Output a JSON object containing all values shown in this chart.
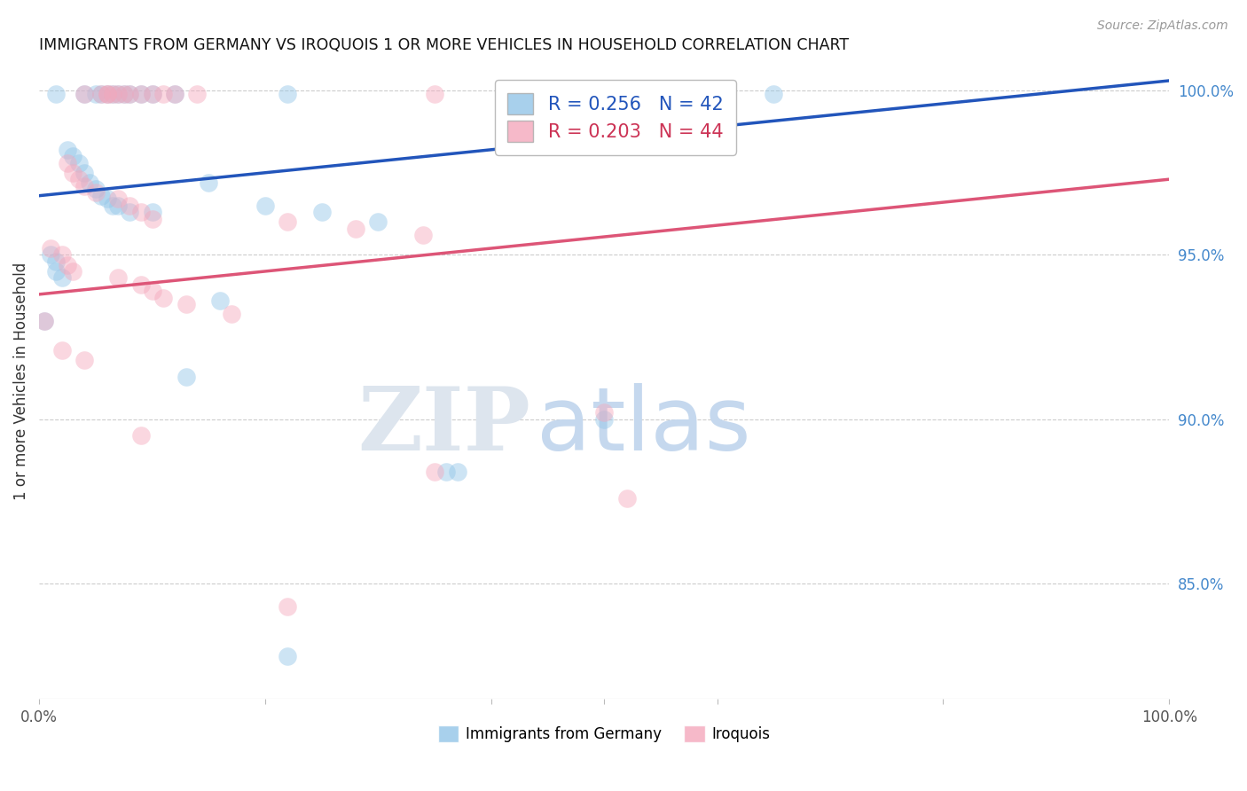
{
  "title": "IMMIGRANTS FROM GERMANY VS IROQUOIS 1 OR MORE VEHICLES IN HOUSEHOLD CORRELATION CHART",
  "source": "Source: ZipAtlas.com",
  "ylabel": "1 or more Vehicles in Household",
  "ylabel_right_ticks": [
    "100.0%",
    "95.0%",
    "90.0%",
    "85.0%"
  ],
  "ylabel_right_vals": [
    1.0,
    0.95,
    0.9,
    0.85
  ],
  "legend_blue_label": "R = 0.256   N = 42",
  "legend_pink_label": "R = 0.203   N = 44",
  "blue_color": "#92c5e8",
  "pink_color": "#f4a8bc",
  "blue_line_color": "#2255bb",
  "pink_line_color": "#dd5577",
  "legend_label_blue": "Immigrants from Germany",
  "legend_label_pink": "Iroquois",
  "watermark_zip": "ZIP",
  "watermark_atlas": "atlas",
  "blue_line_x0": 0.0,
  "blue_line_y0": 0.968,
  "blue_line_x1": 1.0,
  "blue_line_y1": 1.003,
  "pink_line_x0": 0.0,
  "pink_line_y0": 0.938,
  "pink_line_x1": 1.0,
  "pink_line_y1": 0.973,
  "blue_points": [
    [
      0.015,
      0.999
    ],
    [
      0.04,
      0.999
    ],
    [
      0.05,
      0.999
    ],
    [
      0.055,
      0.999
    ],
    [
      0.06,
      0.999
    ],
    [
      0.065,
      0.999
    ],
    [
      0.07,
      0.999
    ],
    [
      0.075,
      0.999
    ],
    [
      0.08,
      0.999
    ],
    [
      0.09,
      0.999
    ],
    [
      0.1,
      0.999
    ],
    [
      0.12,
      0.999
    ],
    [
      0.22,
      0.999
    ],
    [
      0.025,
      0.982
    ],
    [
      0.03,
      0.98
    ],
    [
      0.035,
      0.978
    ],
    [
      0.04,
      0.975
    ],
    [
      0.045,
      0.972
    ],
    [
      0.05,
      0.97
    ],
    [
      0.055,
      0.968
    ],
    [
      0.06,
      0.967
    ],
    [
      0.065,
      0.965
    ],
    [
      0.07,
      0.965
    ],
    [
      0.08,
      0.963
    ],
    [
      0.1,
      0.963
    ],
    [
      0.15,
      0.972
    ],
    [
      0.2,
      0.965
    ],
    [
      0.25,
      0.963
    ],
    [
      0.3,
      0.96
    ],
    [
      0.01,
      0.95
    ],
    [
      0.015,
      0.948
    ],
    [
      0.015,
      0.945
    ],
    [
      0.02,
      0.943
    ],
    [
      0.16,
      0.936
    ],
    [
      0.13,
      0.913
    ],
    [
      0.005,
      0.93
    ],
    [
      0.36,
      0.884
    ],
    [
      0.37,
      0.884
    ],
    [
      0.5,
      0.9
    ],
    [
      0.22,
      0.828
    ],
    [
      0.6,
      0.999
    ],
    [
      0.65,
      0.999
    ]
  ],
  "pink_points": [
    [
      0.04,
      0.999
    ],
    [
      0.055,
      0.999
    ],
    [
      0.06,
      0.999
    ],
    [
      0.065,
      0.999
    ],
    [
      0.07,
      0.999
    ],
    [
      0.075,
      0.999
    ],
    [
      0.08,
      0.999
    ],
    [
      0.09,
      0.999
    ],
    [
      0.1,
      0.999
    ],
    [
      0.11,
      0.999
    ],
    [
      0.12,
      0.999
    ],
    [
      0.14,
      0.999
    ],
    [
      0.025,
      0.978
    ],
    [
      0.03,
      0.975
    ],
    [
      0.035,
      0.973
    ],
    [
      0.04,
      0.971
    ],
    [
      0.05,
      0.969
    ],
    [
      0.07,
      0.967
    ],
    [
      0.08,
      0.965
    ],
    [
      0.09,
      0.963
    ],
    [
      0.1,
      0.961
    ],
    [
      0.22,
      0.96
    ],
    [
      0.28,
      0.958
    ],
    [
      0.34,
      0.956
    ],
    [
      0.01,
      0.952
    ],
    [
      0.02,
      0.95
    ],
    [
      0.025,
      0.947
    ],
    [
      0.03,
      0.945
    ],
    [
      0.07,
      0.943
    ],
    [
      0.09,
      0.941
    ],
    [
      0.1,
      0.939
    ],
    [
      0.11,
      0.937
    ],
    [
      0.13,
      0.935
    ],
    [
      0.17,
      0.932
    ],
    [
      0.02,
      0.921
    ],
    [
      0.04,
      0.918
    ],
    [
      0.09,
      0.895
    ],
    [
      0.5,
      0.902
    ],
    [
      0.35,
      0.884
    ],
    [
      0.22,
      0.843
    ],
    [
      0.52,
      0.876
    ],
    [
      0.06,
      0.999
    ],
    [
      0.35,
      0.999
    ],
    [
      0.005,
      0.93
    ]
  ],
  "xlim": [
    0.0,
    1.0
  ],
  "ylim": [
    0.815,
    1.008
  ],
  "background_color": "#ffffff"
}
